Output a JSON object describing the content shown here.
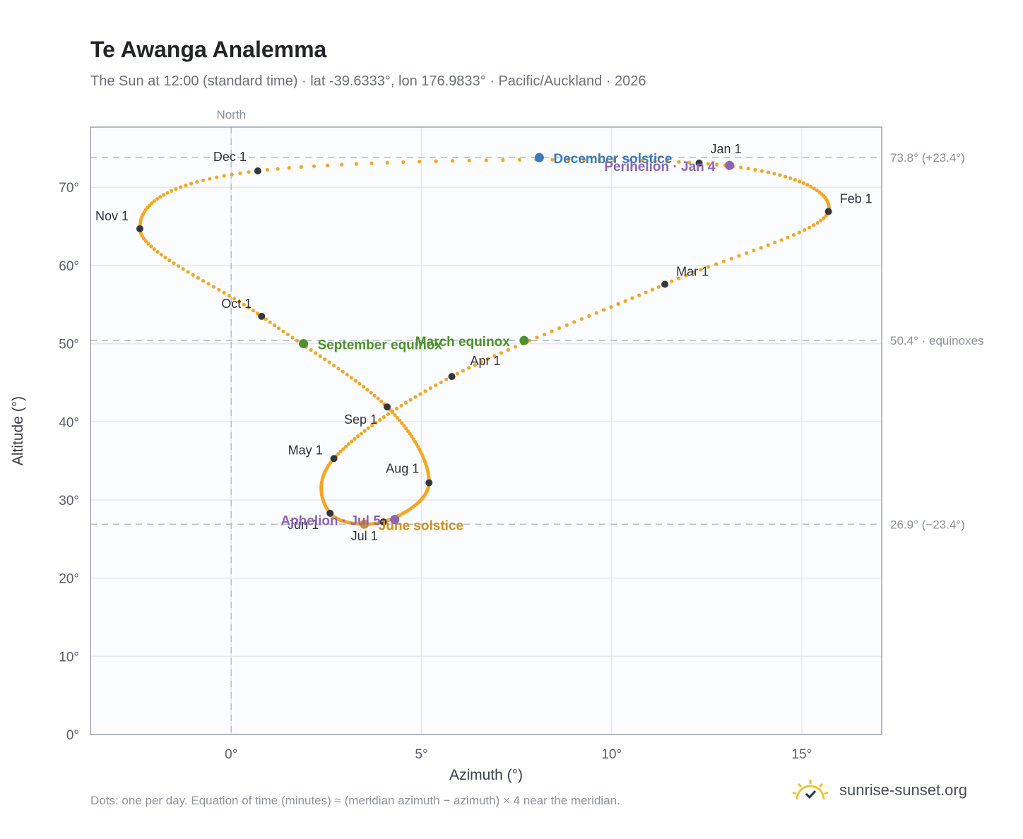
{
  "header": {
    "title": "Te Awanga Analemma",
    "subtitle": "The Sun at 12:00 (standard time) · lat -39.6333°, lon 176.9833° · Pacific/Auckland · 2026"
  },
  "footer": {
    "note": "Dots: one per day. Equation of time (minutes) ≈ (meridian azimuth − azimuth) × 4 near the meridian.",
    "brand": "sunrise-sunset.org",
    "brand_icon": "sun-check-icon"
  },
  "chart_data": {
    "type": "scatter",
    "xlabel": "Azimuth (°)",
    "ylabel": "Altitude (°)",
    "xlim": [
      -3.7,
      17.1
    ],
    "ylim": [
      0,
      77.7
    ],
    "x_ticks": [
      {
        "value": 0,
        "label": "0°"
      },
      {
        "value": 5,
        "label": "5°"
      },
      {
        "value": 10,
        "label": "10°"
      },
      {
        "value": 15,
        "label": "15°"
      }
    ],
    "y_ticks": [
      {
        "value": 0,
        "label": "0°"
      },
      {
        "value": 10,
        "label": "10°"
      },
      {
        "value": 20,
        "label": "20°"
      },
      {
        "value": 30,
        "label": "30°"
      },
      {
        "value": 40,
        "label": "40°"
      },
      {
        "value": 50,
        "label": "50°"
      },
      {
        "value": 60,
        "label": "60°"
      },
      {
        "value": 70,
        "label": "70°"
      }
    ],
    "grid": true,
    "meridian": {
      "x": 0,
      "label": "North"
    },
    "reference_lines": [
      {
        "y": 73.8,
        "label": "73.8° (+23.4°)"
      },
      {
        "y": 50.4,
        "label": "50.4° · equinoxes"
      },
      {
        "y": 26.9,
        "label": "26.9° (−23.4°)"
      }
    ],
    "path_color": "#f5a623",
    "month_markers": [
      {
        "label": "Jan 1",
        "x": 12.3,
        "y": 73.1
      },
      {
        "label": "Feb 1",
        "x": 15.7,
        "y": 66.9
      },
      {
        "label": "Mar 1",
        "x": 11.4,
        "y": 57.6
      },
      {
        "label": "Apr 1",
        "x": 5.8,
        "y": 45.8
      },
      {
        "label": "May 1",
        "x": 2.7,
        "y": 35.3
      },
      {
        "label": "Jun 1",
        "x": 2.6,
        "y": 28.3
      },
      {
        "label": "Jul 1",
        "x": 4.0,
        "y": 27.2
      },
      {
        "label": "Aug 1",
        "x": 5.2,
        "y": 32.2
      },
      {
        "label": "Sep 1",
        "x": 4.1,
        "y": 41.9
      },
      {
        "label": "Oct 1",
        "x": 0.8,
        "y": 53.5
      },
      {
        "label": "Nov 1",
        "x": -2.4,
        "y": 64.7
      },
      {
        "label": "Dec 1",
        "x": 0.7,
        "y": 72.1
      }
    ],
    "special_points": [
      {
        "label": "December solstice",
        "x": 8.1,
        "y": 73.8,
        "color": "#3a7bbf"
      },
      {
        "label": "Perihelion · Jan 4",
        "x": 13.1,
        "y": 72.8,
        "color": "#8e63b8"
      },
      {
        "label": "March equinox",
        "x": 7.7,
        "y": 50.4,
        "color": "#4e8f2e"
      },
      {
        "label": "September equinox",
        "x": 1.9,
        "y": 50.0,
        "color": "#4e8f2e"
      },
      {
        "label": "June solstice",
        "x": 3.5,
        "y": 26.9,
        "color": "#d4901c"
      },
      {
        "label": "Aphelion · Jul 5",
        "x": 4.3,
        "y": 27.5,
        "color": "#8e63b8"
      }
    ]
  }
}
